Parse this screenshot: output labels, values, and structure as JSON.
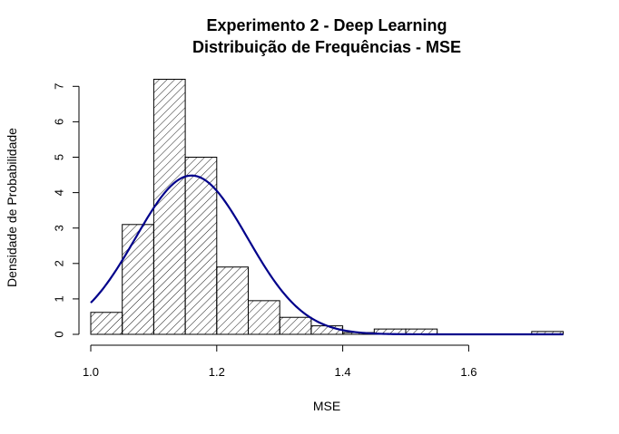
{
  "chart_data": {
    "type": "bar",
    "title": "Experimento 2 - Deep Learning",
    "subtitle": "Distribuição de Frequências - MSE",
    "xlabel": "MSE",
    "ylabel": "Densidade de Probabilidade",
    "xlim": [
      1.0,
      1.75
    ],
    "ylim": [
      0,
      7.2
    ],
    "x_ticks": [
      "1.0",
      "1.2",
      "1.4",
      "1.6"
    ],
    "y_ticks": [
      "0",
      "1",
      "2",
      "3",
      "4",
      "5",
      "6",
      "7"
    ],
    "bin_width": 0.05,
    "bins": [
      {
        "start": 1.0,
        "end": 1.05,
        "density": 0.62
      },
      {
        "start": 1.05,
        "end": 1.1,
        "density": 3.1
      },
      {
        "start": 1.1,
        "end": 1.15,
        "density": 7.2
      },
      {
        "start": 1.15,
        "end": 1.2,
        "density": 5.0
      },
      {
        "start": 1.2,
        "end": 1.25,
        "density": 1.9
      },
      {
        "start": 1.25,
        "end": 1.3,
        "density": 0.95
      },
      {
        "start": 1.3,
        "end": 1.35,
        "density": 0.48
      },
      {
        "start": 1.35,
        "end": 1.4,
        "density": 0.24
      },
      {
        "start": 1.4,
        "end": 1.45,
        "density": 0.05
      },
      {
        "start": 1.45,
        "end": 1.5,
        "density": 0.15
      },
      {
        "start": 1.5,
        "end": 1.55,
        "density": 0.15
      },
      {
        "start": 1.55,
        "end": 1.6,
        "density": 0
      },
      {
        "start": 1.6,
        "end": 1.65,
        "density": 0
      },
      {
        "start": 1.65,
        "end": 1.7,
        "density": 0
      },
      {
        "start": 1.7,
        "end": 1.75,
        "density": 0.08
      }
    ],
    "normal_curve": {
      "mean": 1.16,
      "sd": 0.089,
      "color": "#00008B"
    },
    "fill_pattern": "diagonal-hatch",
    "grid": false
  }
}
